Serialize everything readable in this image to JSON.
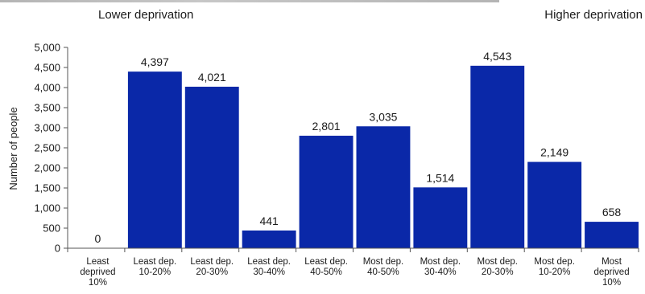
{
  "header": {
    "left_label": "Lower deprivation",
    "right_label": "Higher deprivation"
  },
  "chart_data": {
    "type": "bar",
    "categories": [
      "Least deprived 10%",
      "Least dep. 10-20%",
      "Least dep. 20-30%",
      "Least dep. 30-40%",
      "Least dep. 40-50%",
      "Most dep. 40-50%",
      "Most dep. 30-40%",
      "Most dep. 20-30%",
      "Most dep. 10-20%",
      "Most deprived 10%"
    ],
    "category_lines": [
      [
        "Least",
        "deprived",
        "10%"
      ],
      [
        "Least dep.",
        "10-20%"
      ],
      [
        "Least dep.",
        "20-30%"
      ],
      [
        "Least dep.",
        "30-40%"
      ],
      [
        "Least dep.",
        "40-50%"
      ],
      [
        "Most dep.",
        "40-50%"
      ],
      [
        "Most dep.",
        "30-40%"
      ],
      [
        "Most dep.",
        "20-30%"
      ],
      [
        "Most dep.",
        "10-20%"
      ],
      [
        "Most",
        "deprived",
        "10%"
      ]
    ],
    "values": [
      0,
      4397,
      4021,
      441,
      2801,
      3035,
      1514,
      4543,
      2149,
      658
    ],
    "value_labels": [
      "0",
      "4,397",
      "4,021",
      "441",
      "2,801",
      "3,035",
      "1,514",
      "4,543",
      "2,149",
      "658"
    ],
    "ylabel": "Number of people",
    "ylim": [
      0,
      5000
    ],
    "yticks": [
      0,
      500,
      1000,
      1500,
      2000,
      2500,
      3000,
      3500,
      4000,
      4500,
      5000
    ],
    "ytick_labels": [
      "0",
      "500",
      "1,000",
      "1,500",
      "2,000",
      "2,500",
      "3,000",
      "3,500",
      "4,000",
      "4,500",
      "5,000"
    ],
    "bar_color": "#0a28a8",
    "grid": false,
    "legend": "none"
  }
}
